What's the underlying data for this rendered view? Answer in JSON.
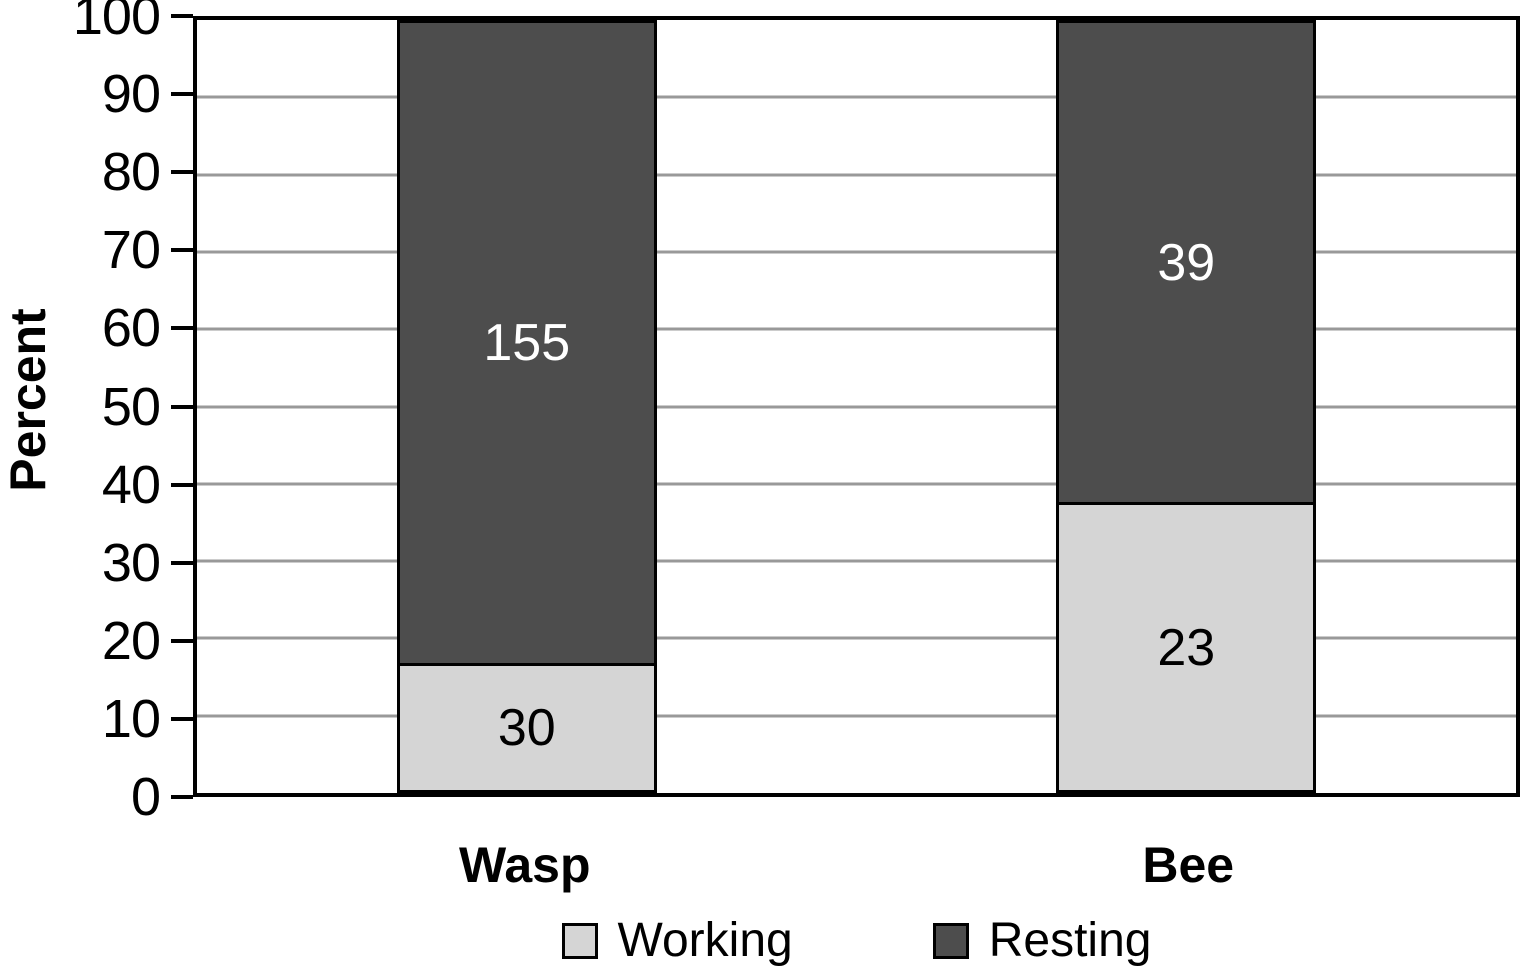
{
  "chart_data": {
    "type": "bar",
    "subtype": "stacked-percent",
    "title": "",
    "xlabel": "",
    "ylabel": "Percent",
    "ylim": [
      0,
      100
    ],
    "ytick_step": 10,
    "ytick_labels": [
      "0",
      "10",
      "20",
      "30",
      "40",
      "50",
      "60",
      "70",
      "80",
      "90",
      "100"
    ],
    "grid": true,
    "gridline_color": "#999999",
    "frame_color": "#000000",
    "categories": [
      "Wasp",
      "Bee"
    ],
    "series": [
      {
        "name": "Working",
        "values": [
          30,
          23
        ],
        "color": "#d5d5d5",
        "label_color": "#000000"
      },
      {
        "name": "Resting",
        "values": [
          155,
          39
        ],
        "color": "#4d4d4d",
        "label_color": "#ffffff"
      }
    ],
    "percent_heights": [
      {
        "category": "Wasp",
        "Working": 16.2,
        "Resting": 83.8
      },
      {
        "category": "Bee",
        "Working": 37.1,
        "Resting": 62.9
      }
    ],
    "legend": {
      "position": "bottom",
      "entries": [
        "Working",
        "Resting"
      ]
    }
  }
}
